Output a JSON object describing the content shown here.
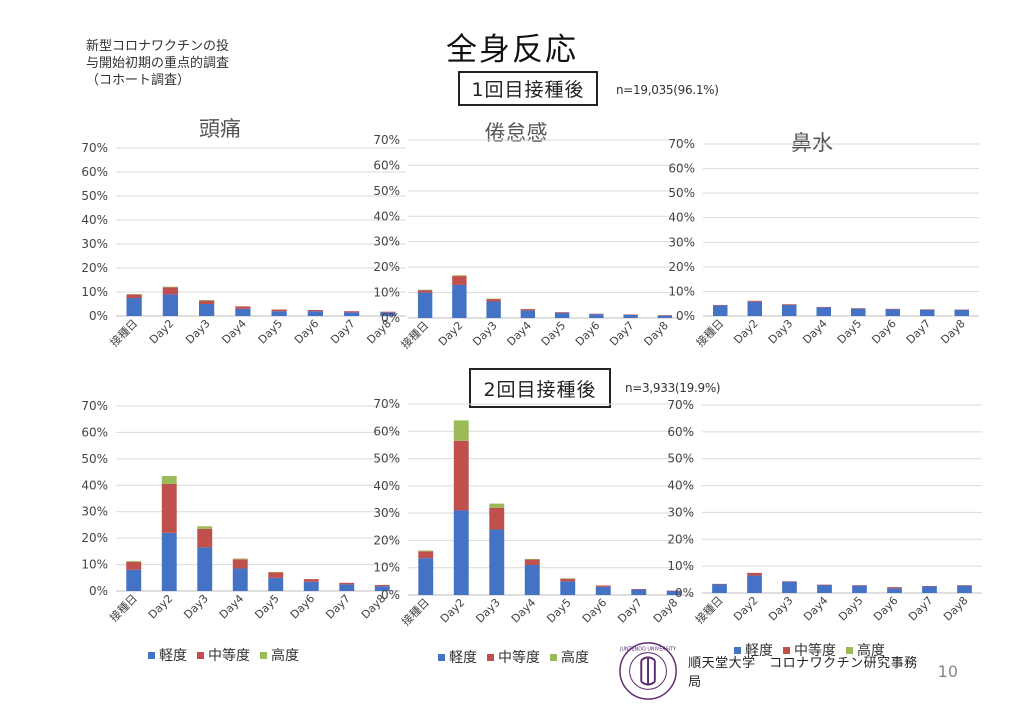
{
  "header": {
    "subtitle_lines": [
      "新型コロナワクチンの投",
      "与開始初期の重点的調査",
      "（コホート調査）"
    ],
    "title": "全身反応",
    "dose1_label": "1回目接種後",
    "dose1_n": "n=19,035(96.1%)",
    "dose2_label": "2回目接種後",
    "dose2_n": "n=3,933(19.9%)"
  },
  "column_titles": [
    "頭痛",
    "倦怠感",
    "鼻水"
  ],
  "legend": {
    "items": [
      {
        "label": "軽度",
        "color": "#4472c4"
      },
      {
        "label": "中等度",
        "color": "#c0504d"
      },
      {
        "label": "高度",
        "color": "#9bbb59"
      }
    ]
  },
  "footer": {
    "logo_text": "JUNTENDO UNIVERSITY",
    "text": "順天堂大学　コロナワクチン研究事務局",
    "page": "10"
  },
  "chart_data": [
    {
      "type": "bar",
      "stacked": true,
      "title": "頭痛",
      "dose": "1回目接種後",
      "categories": [
        "接種日",
        "Day2",
        "Day3",
        "Day4",
        "Day5",
        "Day6",
        "Day7",
        "Day8"
      ],
      "ylim": [
        0,
        70
      ],
      "yticks": [
        "0%",
        "10%",
        "20%",
        "30%",
        "40%",
        "50%",
        "60%",
        "70%"
      ],
      "series": [
        {
          "name": "軽度",
          "values": [
            7.5,
            9,
            5,
            3,
            2,
            2,
            1.5,
            1.5
          ]
        },
        {
          "name": "中等度",
          "values": [
            1.5,
            3,
            1.5,
            1,
            0.7,
            0.5,
            0.5,
            0.3
          ]
        },
        {
          "name": "高度",
          "values": [
            0.1,
            0.2,
            0.1,
            0,
            0,
            0,
            0,
            0
          ]
        }
      ]
    },
    {
      "type": "bar",
      "stacked": true,
      "title": "倦怠感",
      "dose": "1回目接種後",
      "categories": [
        "接種日",
        "Day2",
        "Day3",
        "Day4",
        "Day5",
        "Day6",
        "Day7",
        "Day8"
      ],
      "ylim": [
        0,
        70
      ],
      "yticks": [
        "0%",
        "10%",
        "20%",
        "30%",
        "40%",
        "50%",
        "60%",
        "70%"
      ],
      "series": [
        {
          "name": "軽度",
          "values": [
            10,
            13,
            6.5,
            3,
            2,
            1.5,
            1.2,
            1
          ]
        },
        {
          "name": "中等度",
          "values": [
            1,
            3.5,
            1,
            0.5,
            0.3,
            0.2,
            0.2,
            0.1
          ]
        },
        {
          "name": "高度",
          "values": [
            0.1,
            0.3,
            0.1,
            0,
            0,
            0,
            0,
            0
          ]
        }
      ]
    },
    {
      "type": "bar",
      "stacked": true,
      "title": "鼻水",
      "dose": "1回目接種後",
      "categories": [
        "接種日",
        "Day2",
        "Day3",
        "Day4",
        "Day5",
        "Day6",
        "Day7",
        "Day8"
      ],
      "ylim": [
        0,
        70
      ],
      "yticks": [
        "0%",
        "10%",
        "20%",
        "30%",
        "40%",
        "50%",
        "60%",
        "70%"
      ],
      "series": [
        {
          "name": "軽度",
          "values": [
            4.3,
            5.8,
            4.5,
            3.5,
            3,
            2.8,
            2.6,
            2.5
          ]
        },
        {
          "name": "中等度",
          "values": [
            0.2,
            0.4,
            0.3,
            0.2,
            0.2,
            0.1,
            0.1,
            0.1
          ]
        },
        {
          "name": "高度",
          "values": [
            0,
            0,
            0,
            0,
            0,
            0,
            0,
            0
          ]
        }
      ]
    },
    {
      "type": "bar",
      "stacked": true,
      "title": "頭痛",
      "dose": "2回目接種後",
      "categories": [
        "接種日",
        "Day2",
        "Day3",
        "Day4",
        "Day5",
        "Day6",
        "Day7",
        "Day8"
      ],
      "ylim": [
        0,
        70
      ],
      "yticks": [
        "0%",
        "10%",
        "20%",
        "30%",
        "40%",
        "50%",
        "60%",
        "70%"
      ],
      "series": [
        {
          "name": "軽度",
          "values": [
            8,
            22,
            16.5,
            8.5,
            5,
            3.5,
            2.5,
            1.8
          ]
        },
        {
          "name": "中等度",
          "values": [
            3,
            18.5,
            7,
            3.5,
            2,
            1,
            0.6,
            0.5
          ]
        },
        {
          "name": "高度",
          "values": [
            0.3,
            3,
            1,
            0.3,
            0.2,
            0,
            0,
            0
          ]
        }
      ]
    },
    {
      "type": "bar",
      "stacked": true,
      "title": "倦怠感",
      "dose": "2回目接種後",
      "categories": [
        "接種日",
        "Day2",
        "Day3",
        "Day4",
        "Day5",
        "Day6",
        "Day7",
        "Day8"
      ],
      "ylim": [
        0,
        70
      ],
      "yticks": [
        "0%",
        "10%",
        "20%",
        "30%",
        "40%",
        "50%",
        "60%",
        "70%"
      ],
      "series": [
        {
          "name": "軽度",
          "values": [
            13.5,
            31,
            24,
            11,
            5,
            3,
            2,
            1.5
          ]
        },
        {
          "name": "中等度",
          "values": [
            2.5,
            25.5,
            8,
            2,
            1,
            0.5,
            0.2,
            0.1
          ]
        },
        {
          "name": "高度",
          "values": [
            0.3,
            7.5,
            1.5,
            0.2,
            0.1,
            0,
            0,
            0
          ]
        }
      ]
    },
    {
      "type": "bar",
      "stacked": true,
      "title": "鼻水",
      "dose": "2回目接種後",
      "categories": [
        "接種日",
        "Day2",
        "Day3",
        "Day4",
        "Day5",
        "Day6",
        "Day7",
        "Day8"
      ],
      "ylim": [
        0,
        70
      ],
      "yticks": [
        "0%",
        "10%",
        "20%",
        "30%",
        "40%",
        "50%",
        "60%",
        "70%"
      ],
      "series": [
        {
          "name": "軽度",
          "values": [
            3.3,
            6.5,
            4.2,
            3,
            2.8,
            1.8,
            2.5,
            2.8
          ]
        },
        {
          "name": "中等度",
          "values": [
            0.1,
            1,
            0.2,
            0.1,
            0.1,
            0.4,
            0.1,
            0.1
          ]
        },
        {
          "name": "高度",
          "values": [
            0,
            0,
            0,
            0,
            0,
            0,
            0,
            0
          ]
        }
      ]
    }
  ]
}
